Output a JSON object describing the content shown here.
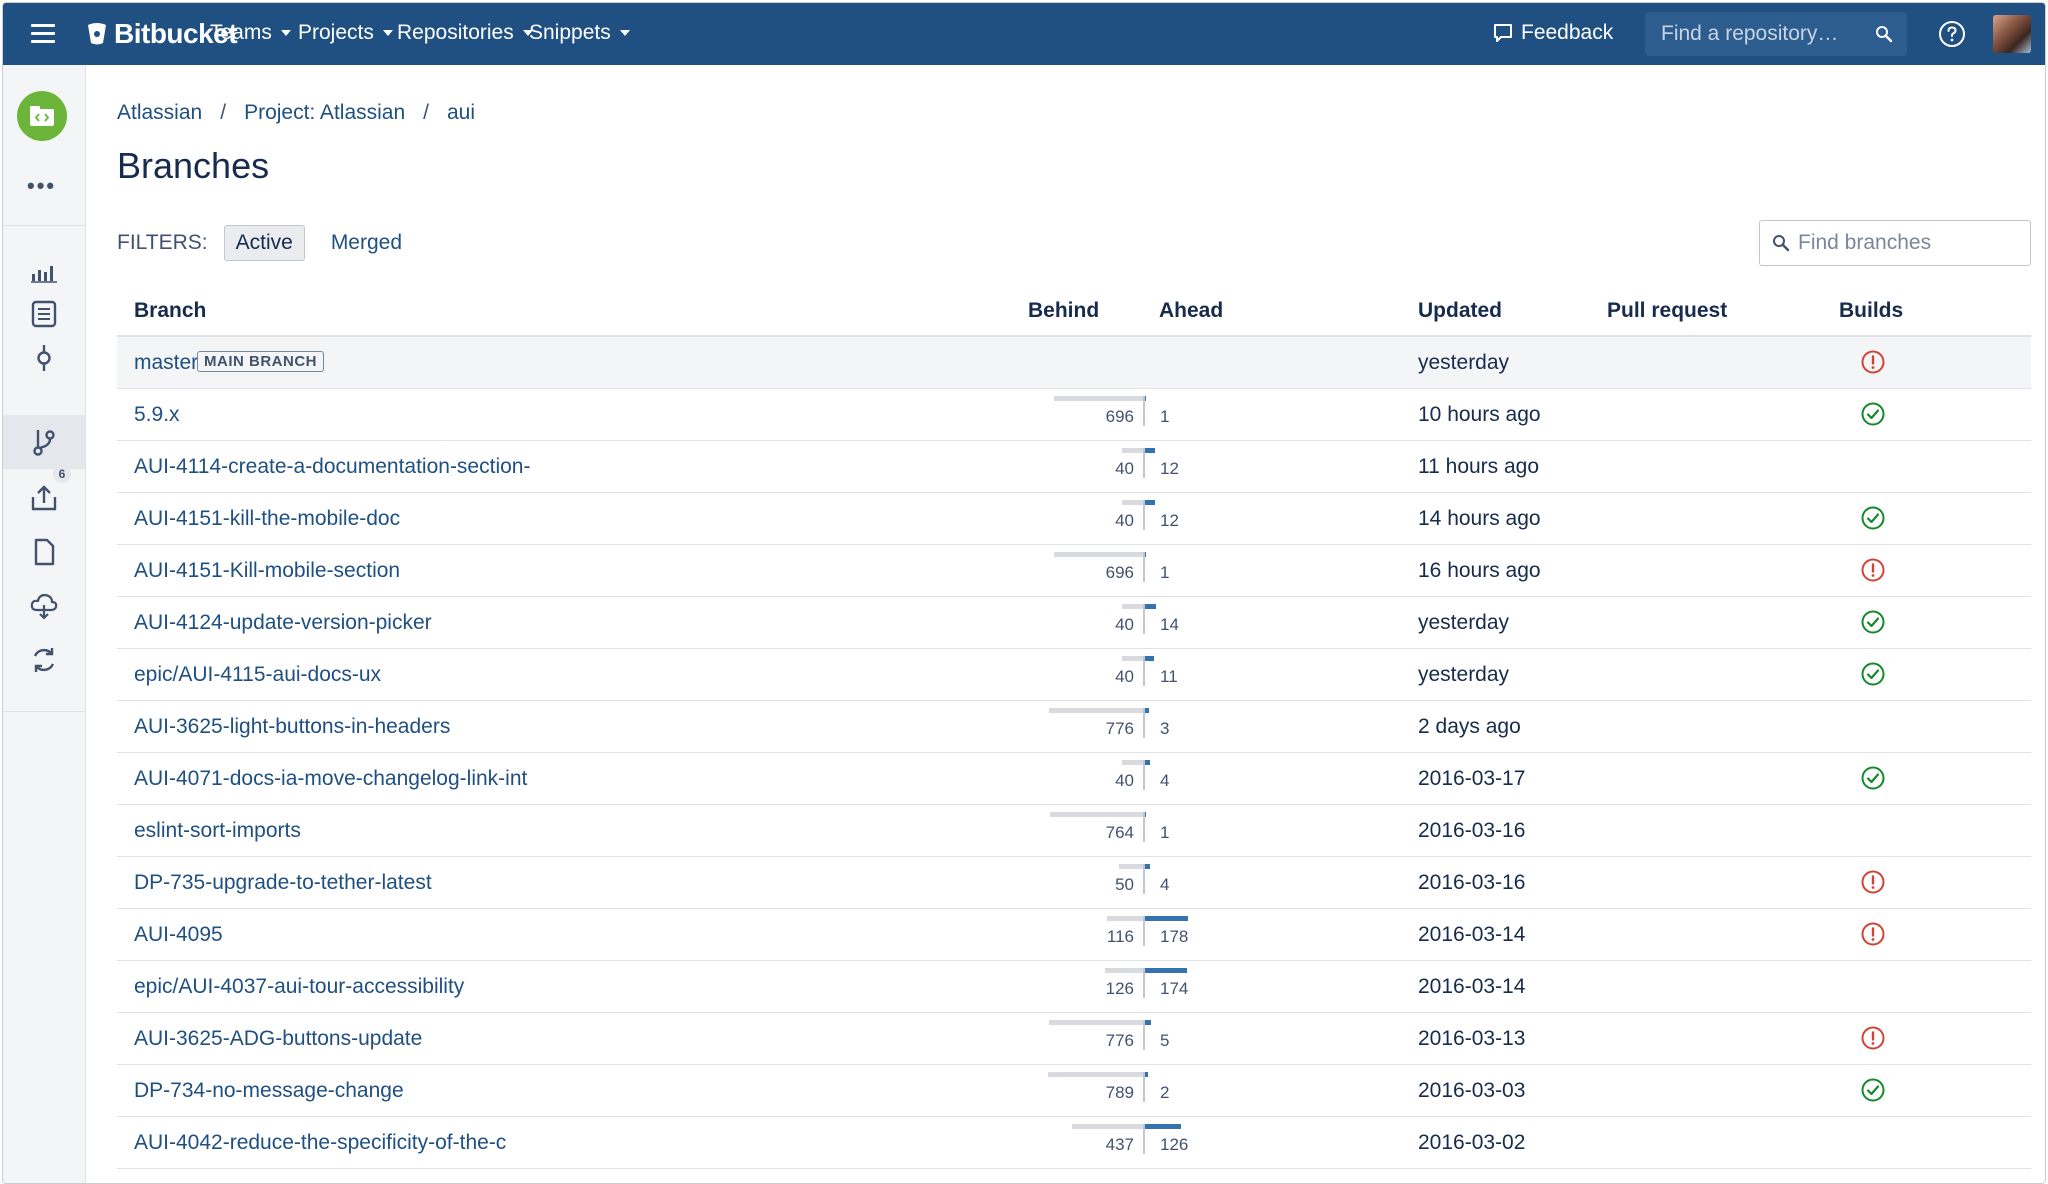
{
  "nav": {
    "brand": "Bitbucket",
    "items": [
      "Teams",
      "Projects",
      "Repositories",
      "Snippets"
    ],
    "feedback": "Feedback",
    "search_placeholder": "Find a repository…"
  },
  "sidebar": {
    "badge_count": "6"
  },
  "breadcrumb": [
    "Atlassian",
    "Project: Atlassian",
    "aui"
  ],
  "page_title": "Branches",
  "filters": {
    "label": "FILTERS:",
    "active": "Active",
    "merged": "Merged",
    "search_placeholder": "Find branches"
  },
  "table": {
    "headers": {
      "branch": "Branch",
      "behind": "Behind",
      "ahead": "Ahead",
      "updated": "Updated",
      "pull_request": "Pull request",
      "builds": "Builds"
    },
    "main_badge": "MAIN BRANCH",
    "rows": [
      {
        "branch": "master",
        "main": true,
        "behind": null,
        "ahead": null,
        "updated": "yesterday",
        "build": "failed"
      },
      {
        "branch": "5.9.x",
        "behind": "696",
        "ahead": "1",
        "updated": "10 hours ago",
        "build": "success"
      },
      {
        "branch": "AUI-4114-create-a-documentation-section-",
        "behind": "40",
        "ahead": "12",
        "updated": "11 hours ago",
        "build": null
      },
      {
        "branch": "AUI-4151-kill-the-mobile-doc",
        "behind": "40",
        "ahead": "12",
        "updated": "14 hours ago",
        "build": "success"
      },
      {
        "branch": "AUI-4151-Kill-mobile-section",
        "behind": "696",
        "ahead": "1",
        "updated": "16 hours ago",
        "build": "failed"
      },
      {
        "branch": "AUI-4124-update-version-picker",
        "behind": "40",
        "ahead": "14",
        "updated": "yesterday",
        "build": "success"
      },
      {
        "branch": "epic/AUI-4115-aui-docs-ux",
        "behind": "40",
        "ahead": "11",
        "updated": "yesterday",
        "build": "success"
      },
      {
        "branch": "AUI-3625-light-buttons-in-headers",
        "behind": "776",
        "ahead": "3",
        "updated": "2 days ago",
        "build": null
      },
      {
        "branch": "AUI-4071-docs-ia-move-changelog-link-int",
        "behind": "40",
        "ahead": "4",
        "updated": "2016-03-17",
        "build": "success"
      },
      {
        "branch": "eslint-sort-imports",
        "behind": "764",
        "ahead": "1",
        "updated": "2016-03-16",
        "build": null
      },
      {
        "branch": "DP-735-upgrade-to-tether-latest",
        "behind": "50",
        "ahead": "4",
        "updated": "2016-03-16",
        "build": "failed"
      },
      {
        "branch": "AUI-4095",
        "behind": "116",
        "ahead": "178",
        "updated": "2016-03-14",
        "build": "failed"
      },
      {
        "branch": "epic/AUI-4037-aui-tour-accessibility",
        "behind": "126",
        "ahead": "174",
        "updated": "2016-03-14",
        "build": null
      },
      {
        "branch": "AUI-3625-ADG-buttons-update",
        "behind": "776",
        "ahead": "5",
        "updated": "2016-03-13",
        "build": "failed"
      },
      {
        "branch": "DP-734-no-message-change",
        "behind": "789",
        "ahead": "2",
        "updated": "2016-03-03",
        "build": "success"
      },
      {
        "branch": "AUI-4042-reduce-the-specificity-of-the-c",
        "behind": "437",
        "ahead": "126",
        "updated": "2016-03-02",
        "build": null
      }
    ]
  },
  "colors": {
    "nav_bg": "#205081",
    "link": "#205081",
    "ahead_bar": "#3572b0",
    "behind_bar": "#d8dadf",
    "success": "#14892c",
    "failed": "#d04437",
    "project_avatar": "#6bb53b"
  }
}
